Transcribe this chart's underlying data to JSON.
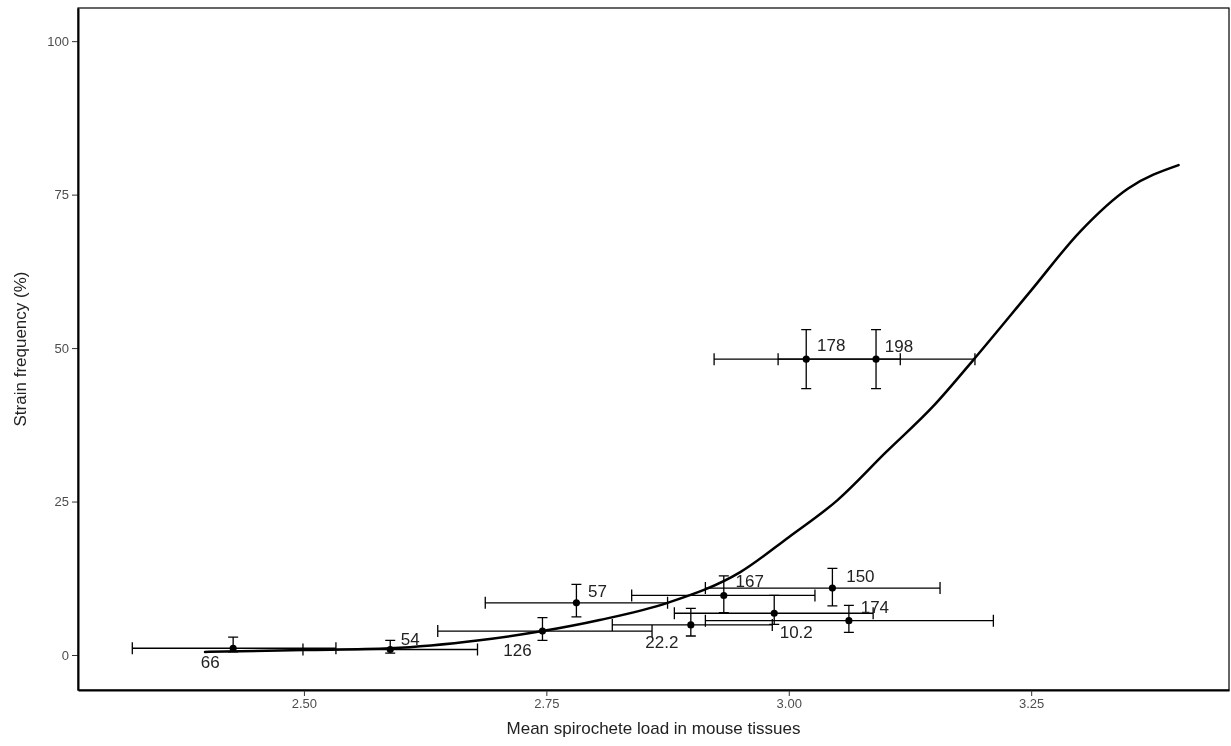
{
  "chart_data": {
    "type": "scatter",
    "xlabel": "Mean spirochete load in mouse tissues",
    "ylabel": "Strain frequency (%)",
    "xlim": [
      2.267,
      3.454
    ],
    "ylim": [
      -5.7,
      105.4
    ],
    "xticks": [
      {
        "value": 2.5,
        "label": "2.50"
      },
      2.75,
      {
        "value": 3.0,
        "label": "3.00"
      },
      3.25
    ],
    "yticks": [
      0,
      25,
      50,
      75,
      100
    ],
    "grid": false,
    "series": [
      {
        "marker": "circle",
        "color": "#000000",
        "x": [
          2.427,
          2.589,
          2.746,
          2.781,
          2.899,
          2.933,
          2.985,
          3.045,
          3.062,
          3.018,
          3.09
        ],
        "values": [
          1.1,
          0.9,
          3.9,
          8.5,
          4.9,
          9.7,
          6.8,
          10.9,
          5.6,
          48.2,
          48.2
        ],
        "errors": [
          [
            0.5,
            2.9
          ],
          [
            0.3,
            2.4
          ],
          [
            2.4,
            6.1
          ],
          [
            6.2,
            11.5
          ],
          [
            3.1,
            7.6
          ],
          [
            6.9,
            12.9
          ],
          [
            5.0,
            9.7
          ],
          [
            8.0,
            14.1
          ],
          [
            3.7,
            8.1
          ],
          [
            43.4,
            53.0
          ],
          [
            43.4,
            53.0
          ]
        ],
        "xerrors": [
          [
            2.323,
            2.533
          ],
          [
            2.499,
            2.679
          ],
          [
            2.638,
            2.859
          ],
          [
            2.687,
            2.875
          ],
          [
            2.818,
            2.983
          ],
          [
            2.838,
            3.027
          ],
          [
            2.882,
            3.087
          ],
          [
            2.914,
            3.156
          ],
          [
            2.914,
            3.211
          ],
          [
            2.923,
            3.115
          ],
          [
            2.989,
            3.192
          ]
        ]
      },
      {
        "type": "line",
        "color": "#000000",
        "x": [
          2.398,
          2.5,
          2.589,
          2.681,
          2.746,
          2.805,
          2.875,
          2.95,
          3.0,
          3.05,
          3.1,
          3.15,
          3.19,
          3.25,
          3.3,
          3.35,
          3.402
        ],
        "values": [
          0.5,
          0.8,
          1.1,
          2.4,
          3.9,
          5.7,
          8.5,
          13.5,
          19.2,
          25.2,
          33.0,
          40.7,
          48.0,
          59.4,
          68.9,
          76.0,
          79.8
        ]
      }
    ],
    "annotations": [
      {
        "text": "66",
        "x": 2.427,
        "y": 1.1
      },
      {
        "text": "54",
        "x": 2.589,
        "y": 0.9
      },
      {
        "text": "126",
        "x": 2.746,
        "y": 3.9
      },
      {
        "text": "57",
        "x": 2.781,
        "y": 8.5
      },
      {
        "text": "22.2",
        "x": 2.899,
        "y": 4.9
      },
      {
        "text": "167",
        "x": 2.933,
        "y": 9.7
      },
      {
        "text": "10.2",
        "x": 2.985,
        "y": 6.8
      },
      {
        "text": "150",
        "x": 3.045,
        "y": 10.9
      },
      {
        "text": "174",
        "x": 3.062,
        "y": 5.6
      },
      {
        "text": "178",
        "x": 3.018,
        "y": 48.2
      },
      {
        "text": "198",
        "x": 3.09,
        "y": 48.2
      }
    ]
  }
}
